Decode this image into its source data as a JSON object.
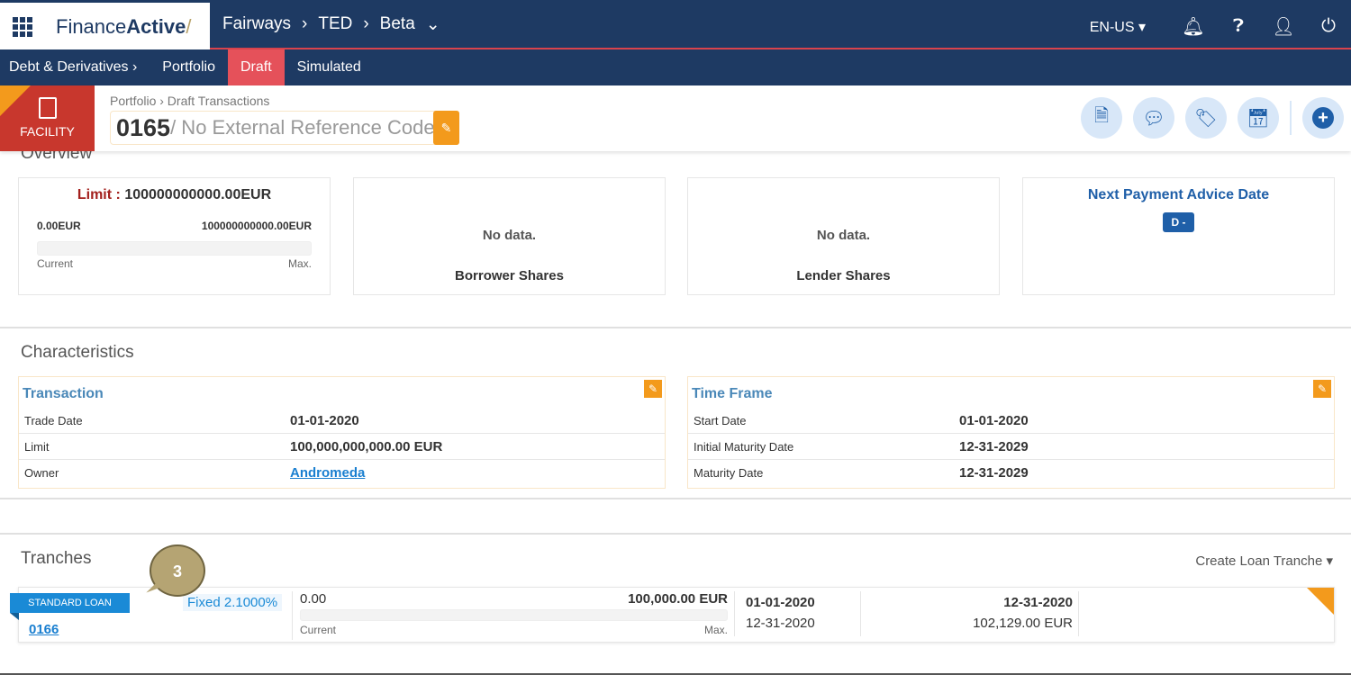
{
  "app": {
    "brand_regular": "Finance",
    "brand_bold": "Active",
    "breadcrumb": [
      "Fairways",
      "TED",
      "Beta"
    ],
    "language": "EN-US"
  },
  "nav": {
    "items": [
      "Debt & Derivatives ›",
      "Portfolio",
      "Draft",
      "Simulated"
    ],
    "active": "Draft"
  },
  "header": {
    "type_label": "FACILITY",
    "breadcrumb": "Portfolio › Draft Transactions",
    "code": "0165",
    "reference": "/ No External Reference Code"
  },
  "overview": {
    "title": "Overview",
    "limit_label": "Limit :",
    "limit_value": "100000000000.00EUR",
    "current_value": "0.00EUR",
    "max_value": "100000000000.00EUR",
    "current_label": "Current",
    "max_label": "Max.",
    "utilization_percent": 0,
    "borrower": {
      "empty": "No data.",
      "title": "Borrower Shares"
    },
    "lender": {
      "empty": "No data.",
      "title": "Lender Shares"
    },
    "payment": {
      "title": "Next Payment Advice Date",
      "badge": "D -"
    }
  },
  "characteristics": {
    "title": "Characteristics",
    "transaction": {
      "title": "Transaction",
      "rows": [
        {
          "k": "Trade Date",
          "v": "01-01-2020"
        },
        {
          "k": "Limit",
          "v": "100,000,000,000.00 EUR"
        },
        {
          "k": "Owner",
          "v": "Andromeda"
        }
      ]
    },
    "timeframe": {
      "title": "Time Frame",
      "rows": [
        {
          "k": "Start Date",
          "v": "01-01-2020"
        },
        {
          "k": "Initial Maturity Date",
          "v": "12-31-2029"
        },
        {
          "k": "Maturity Date",
          "v": "12-31-2029"
        }
      ]
    }
  },
  "tranches": {
    "title": "Tranches",
    "create_label": "Create Loan Tranche",
    "step_badge": "3",
    "items": [
      {
        "type": "STANDARD LOAN",
        "rate": "Fixed 2.1000%",
        "code": "0166",
        "current": "0.00",
        "max": "100,000.00 EUR",
        "current_label": "Current",
        "max_label": "Max.",
        "utilization_percent": 0,
        "start": "01-01-2020",
        "end_bold": "12-31-2020",
        "date2": "12-31-2020",
        "amount": "102,129.00 EUR"
      }
    ]
  },
  "colors": {
    "navy": "#1e3a63",
    "draft": "#e5515a",
    "facility": "#c8372d",
    "orange": "#f39a1c",
    "link": "#1a7fd0"
  }
}
